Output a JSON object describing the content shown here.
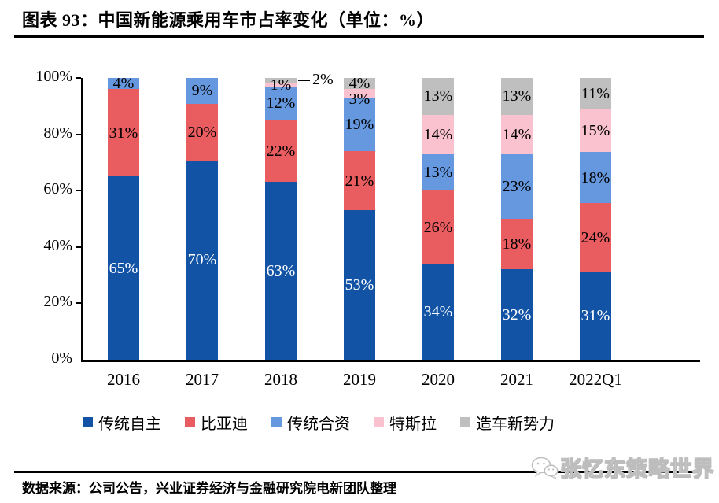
{
  "header": {
    "title": "图表 93：中国新能源乘用车市占率变化（单位：%）"
  },
  "chart_data": {
    "type": "bar",
    "stacked": true,
    "title": "中国新能源乘用车市占率变化",
    "unit": "%",
    "categories": [
      "2016",
      "2017",
      "2018",
      "2019",
      "2020",
      "2021",
      "2022Q1"
    ],
    "series": [
      {
        "name": "传统自主",
        "color": "#1253A5",
        "label_color": "#ffffff",
        "values": [
          65,
          70,
          63,
          53,
          34,
          32,
          31
        ]
      },
      {
        "name": "比亚迪",
        "color": "#E95C5F",
        "label_color": "#000000",
        "values": [
          31,
          20,
          22,
          21,
          26,
          18,
          24
        ]
      },
      {
        "name": "传统合资",
        "color": "#6598DE",
        "label_color": "#000000",
        "values": [
          4,
          9,
          12,
          19,
          13,
          23,
          18
        ]
      },
      {
        "name": "特斯拉",
        "color": "#F9C2CE",
        "label_color": "#000000",
        "values": [
          0,
          0,
          1,
          3,
          14,
          14,
          15
        ]
      },
      {
        "name": "造车新势力",
        "color": "#BFBFBF",
        "label_color": "#000000",
        "values": [
          0,
          0,
          2,
          4,
          13,
          13,
          11
        ]
      }
    ],
    "y_ticks": [
      "0%",
      "20%",
      "40%",
      "60%",
      "80%",
      "100%"
    ],
    "ylim": [
      0,
      100
    ],
    "grid": false,
    "legend_position": "bottom",
    "external_labels": [
      {
        "category": "2018",
        "series": "造车新势力",
        "text": "2%"
      }
    ]
  },
  "footer": {
    "source": "数据来源：公司公告，兴业证券经济与金融研究院电新团队整理"
  },
  "watermark": {
    "text": "张忆东策略世界",
    "icon": "wechat-icon"
  }
}
